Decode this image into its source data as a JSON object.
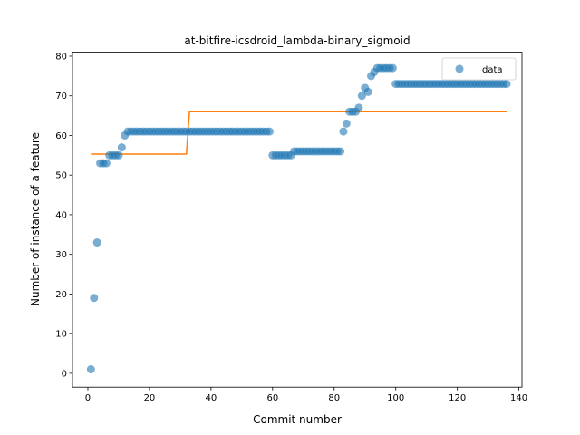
{
  "chart_data": {
    "type": "scatter",
    "title": "at-bitfire-icsdroid_lambda-binary_sigmoid",
    "xlabel": "Commit number",
    "ylabel": "Number of instance of a feature",
    "xlim": [
      -5,
      141
    ],
    "ylim": [
      -3.5,
      81
    ],
    "xticks": [
      0,
      20,
      40,
      60,
      80,
      100,
      120,
      140
    ],
    "yticks": [
      0,
      10,
      20,
      30,
      40,
      50,
      60,
      70,
      80
    ],
    "legend_position": "top-right",
    "series": [
      {
        "name": "data",
        "kind": "scatter",
        "color": "#1f77b4",
        "x": [
          1,
          2,
          3,
          4,
          5,
          6,
          7,
          8,
          9,
          10,
          11,
          12,
          13,
          14,
          15,
          16,
          17,
          18,
          19,
          20,
          21,
          22,
          23,
          24,
          25,
          26,
          27,
          28,
          29,
          30,
          31,
          32,
          33,
          34,
          35,
          36,
          37,
          38,
          39,
          40,
          41,
          42,
          43,
          44,
          45,
          46,
          47,
          48,
          49,
          50,
          51,
          52,
          53,
          54,
          55,
          56,
          57,
          58,
          59,
          60,
          61,
          62,
          63,
          64,
          65,
          66,
          67,
          68,
          69,
          70,
          71,
          72,
          73,
          74,
          75,
          76,
          77,
          78,
          79,
          80,
          81,
          82,
          83,
          84,
          85,
          86,
          87,
          88,
          89,
          90,
          91,
          92,
          93,
          94,
          95,
          96,
          97,
          98,
          99,
          100,
          101,
          102,
          103,
          104,
          105,
          106,
          107,
          108,
          109,
          110,
          111,
          112,
          113,
          114,
          115,
          116,
          117,
          118,
          119,
          120,
          121,
          122,
          123,
          124,
          125,
          126,
          127,
          128,
          129,
          130,
          131,
          132,
          133,
          134,
          135,
          136
        ],
        "y": [
          1,
          19,
          33,
          53,
          53,
          53,
          55,
          55,
          55,
          55,
          57,
          60,
          61,
          61,
          61,
          61,
          61,
          61,
          61,
          61,
          61,
          61,
          61,
          61,
          61,
          61,
          61,
          61,
          61,
          61,
          61,
          61,
          61,
          61,
          61,
          61,
          61,
          61,
          61,
          61,
          61,
          61,
          61,
          61,
          61,
          61,
          61,
          61,
          61,
          61,
          61,
          61,
          61,
          61,
          61,
          61,
          61,
          61,
          61,
          55,
          55,
          55,
          55,
          55,
          55,
          55,
          56,
          56,
          56,
          56,
          56,
          56,
          56,
          56,
          56,
          56,
          56,
          56,
          56,
          56,
          56,
          56,
          61,
          63,
          66,
          66,
          66,
          67,
          70,
          72,
          71,
          75,
          76,
          77,
          77,
          77,
          77,
          77,
          77,
          73,
          73,
          73,
          73,
          73,
          73,
          73,
          73,
          73,
          73,
          73,
          73,
          73,
          73,
          73,
          73,
          73,
          73,
          73,
          73,
          73,
          73,
          73,
          73,
          73,
          73,
          73,
          73,
          73,
          73,
          73,
          73,
          73,
          73,
          73,
          73,
          73
        ]
      },
      {
        "kind": "line",
        "color": "#ff7f0e",
        "x": [
          1,
          32,
          33,
          136
        ],
        "y": [
          55.3,
          55.3,
          66,
          66
        ]
      }
    ]
  }
}
